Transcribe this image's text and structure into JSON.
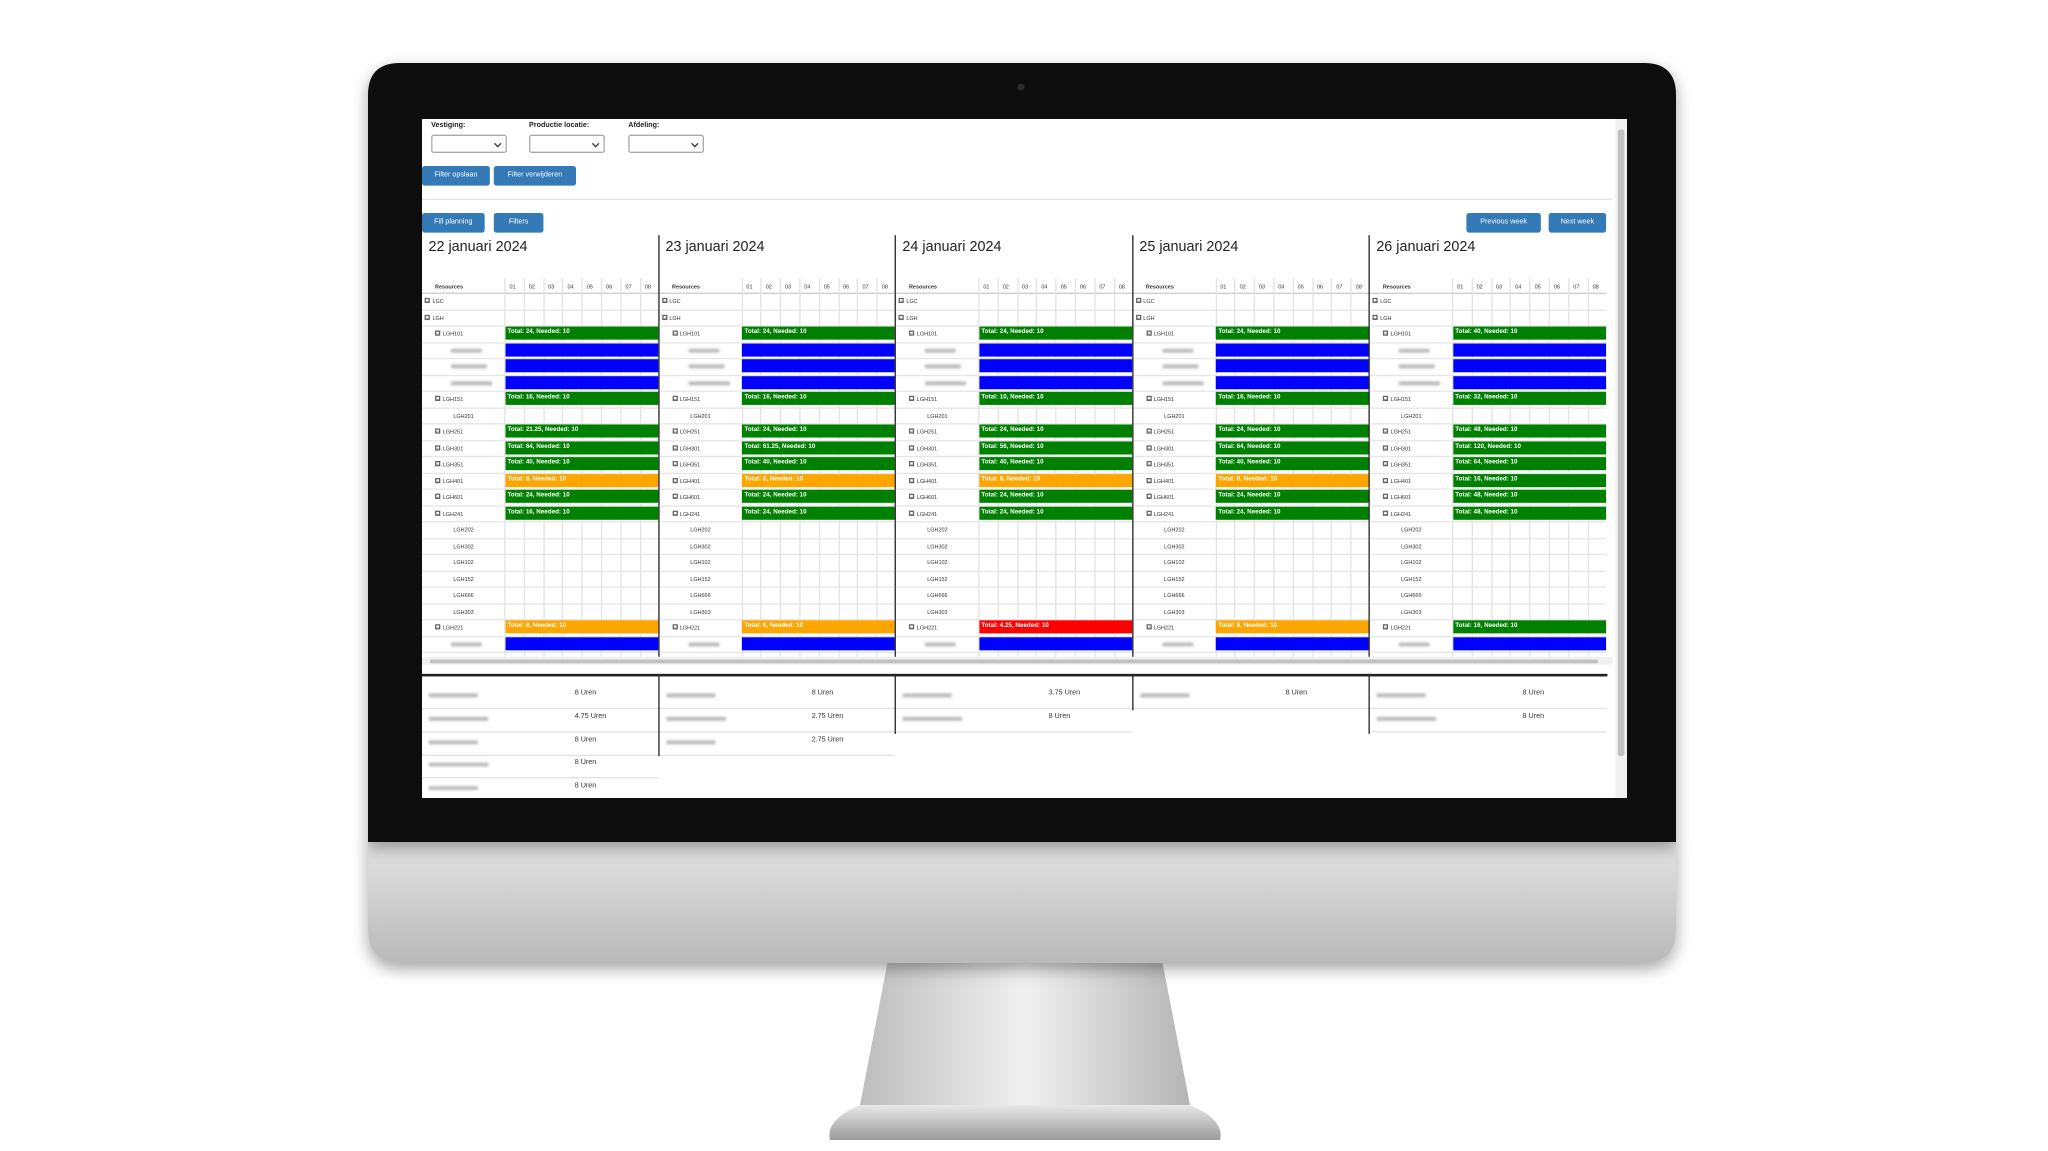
{
  "filters": {
    "labels": [
      "Vestiging:",
      "Productie locatie:",
      "Afdeling:"
    ],
    "buttons": [
      "Filter opslaan",
      "Filter verwijderen"
    ]
  },
  "toolbar": {
    "left": [
      "Fill planning",
      "Filters"
    ],
    "right": [
      "Previous week",
      "Next week"
    ]
  },
  "table": {
    "resources_header": "Resources",
    "hours": [
      "01",
      "02",
      "03",
      "04",
      "05",
      "06",
      "07",
      "08"
    ],
    "resources": [
      "LGC",
      "LGH",
      "LGH101",
      null,
      null,
      null,
      "LGH151",
      "LGH201",
      "LGH251",
      "LGH301",
      "LGH351",
      "LGH401",
      "LGH601",
      "LGH241",
      "LGH202",
      "LGH302",
      "LGH102",
      "LGH152",
      "LGH666",
      "LGH303",
      "LGH221",
      null
    ]
  },
  "days": [
    {
      "title": "22 januari 2024",
      "cells": [
        null,
        null,
        {
          "label": "Total: 24, Needed: 10",
          "color": "#008000"
        },
        {
          "color": "#0000ff"
        },
        {
          "color": "#0000ff"
        },
        {
          "color": "#0000ff"
        },
        {
          "label": "Total: 16, Needed: 10",
          "color": "#008000"
        },
        null,
        {
          "label": "Total: 21.25, Needed: 10",
          "color": "#008000"
        },
        {
          "label": "Total: 64, Needed: 10",
          "color": "#008000"
        },
        {
          "label": "Total: 40, Needed: 10",
          "color": "#008000"
        },
        {
          "label": "Total: 8, Needed: 10",
          "color": "#ffa500"
        },
        {
          "label": "Total: 24, Needed: 10",
          "color": "#008000"
        },
        {
          "label": "Total: 16, Needed: 10",
          "color": "#008000"
        },
        null,
        null,
        null,
        null,
        null,
        null,
        {
          "label": "Total: 8, Needed: 10",
          "color": "#ffa500"
        },
        {
          "color": "#0000ff"
        }
      ],
      "hours_list": [
        "8 Uren",
        "4.75 Uren",
        "8 Uren",
        "8 Uren",
        "8 Uren"
      ]
    },
    {
      "title": "23 januari 2024",
      "cells": [
        null,
        null,
        {
          "label": "Total: 24, Needed: 10",
          "color": "#008000"
        },
        {
          "color": "#0000ff"
        },
        {
          "color": "#0000ff"
        },
        {
          "color": "#0000ff"
        },
        {
          "label": "Total: 16, Needed: 10",
          "color": "#008000"
        },
        null,
        {
          "label": "Total: 24, Needed: 10",
          "color": "#008000"
        },
        {
          "label": "Total: 61.25, Needed: 10",
          "color": "#008000"
        },
        {
          "label": "Total: 40, Needed: 10",
          "color": "#008000"
        },
        {
          "label": "Total: 8, Needed: 10",
          "color": "#ffa500"
        },
        {
          "label": "Total: 24, Needed: 10",
          "color": "#008000"
        },
        {
          "label": "Total: 24, Needed: 10",
          "color": "#008000"
        },
        null,
        null,
        null,
        null,
        null,
        null,
        {
          "label": "Total: 8, Needed: 10",
          "color": "#ffa500"
        },
        {
          "color": "#0000ff"
        }
      ],
      "hours_list": [
        "8 Uren",
        "2.75 Uren",
        "2.75 Uren"
      ]
    },
    {
      "title": "24 januari 2024",
      "cells": [
        null,
        null,
        {
          "label": "Total: 24, Needed: 10",
          "color": "#008000"
        },
        {
          "color": "#0000ff"
        },
        {
          "color": "#0000ff"
        },
        {
          "color": "#0000ff"
        },
        {
          "label": "Total: 10, Needed: 10",
          "color": "#008000"
        },
        null,
        {
          "label": "Total: 24, Needed: 10",
          "color": "#008000"
        },
        {
          "label": "Total: 56, Needed: 10",
          "color": "#008000"
        },
        {
          "label": "Total: 40, Needed: 10",
          "color": "#008000"
        },
        {
          "label": "Total: 8, Needed: 10",
          "color": "#ffa500"
        },
        {
          "label": "Total: 24, Needed: 10",
          "color": "#008000"
        },
        {
          "label": "Total: 24, Needed: 10",
          "color": "#008000"
        },
        null,
        null,
        null,
        null,
        null,
        null,
        {
          "label": "Total: 4.25, Needed: 10",
          "color": "#ff0000"
        },
        {
          "color": "#0000ff"
        }
      ],
      "hours_list": [
        "3.75 Uren",
        "8 Uren"
      ]
    },
    {
      "title": "25 januari 2024",
      "cells": [
        null,
        null,
        {
          "label": "Total: 24, Needed: 10",
          "color": "#008000"
        },
        {
          "color": "#0000ff"
        },
        {
          "color": "#0000ff"
        },
        {
          "color": "#0000ff"
        },
        {
          "label": "Total: 16, Needed: 10",
          "color": "#008000"
        },
        null,
        {
          "label": "Total: 24, Needed: 10",
          "color": "#008000"
        },
        {
          "label": "Total: 64, Needed: 10",
          "color": "#008000"
        },
        {
          "label": "Total: 40, Needed: 10",
          "color": "#008000"
        },
        {
          "label": "Total: 8, Needed: 10",
          "color": "#ffa500"
        },
        {
          "label": "Total: 24, Needed: 10",
          "color": "#008000"
        },
        {
          "label": "Total: 24, Needed: 10",
          "color": "#008000"
        },
        null,
        null,
        null,
        null,
        null,
        null,
        {
          "label": "Total: 8, Needed: 10",
          "color": "#ffa500"
        },
        {
          "color": "#0000ff"
        }
      ],
      "hours_list": [
        "8 Uren"
      ]
    },
    {
      "title": "26 januari 2024",
      "cells": [
        null,
        null,
        {
          "label": "Total: 40, Needed: 10",
          "color": "#008000"
        },
        {
          "color": "#0000ff"
        },
        {
          "color": "#0000ff"
        },
        {
          "color": "#0000ff"
        },
        {
          "label": "Total: 32, Needed: 10",
          "color": "#008000"
        },
        null,
        {
          "label": "Total: 48, Needed: 10",
          "color": "#008000"
        },
        {
          "label": "Total: 120, Needed: 10",
          "color": "#008000"
        },
        {
          "label": "Total: 64, Needed: 10",
          "color": "#008000"
        },
        {
          "label": "Total: 16, Needed: 10",
          "color": "#008000"
        },
        {
          "label": "Total: 48, Needed: 10",
          "color": "#008000"
        },
        {
          "label": "Total: 48, Needed: 10",
          "color": "#008000"
        },
        null,
        null,
        null,
        null,
        null,
        null,
        {
          "label": "Total: 16, Needed: 10",
          "color": "#008000"
        },
        {
          "color": "#0000ff"
        }
      ],
      "hours_list": [
        "8 Uren",
        "8 Uren"
      ]
    }
  ]
}
